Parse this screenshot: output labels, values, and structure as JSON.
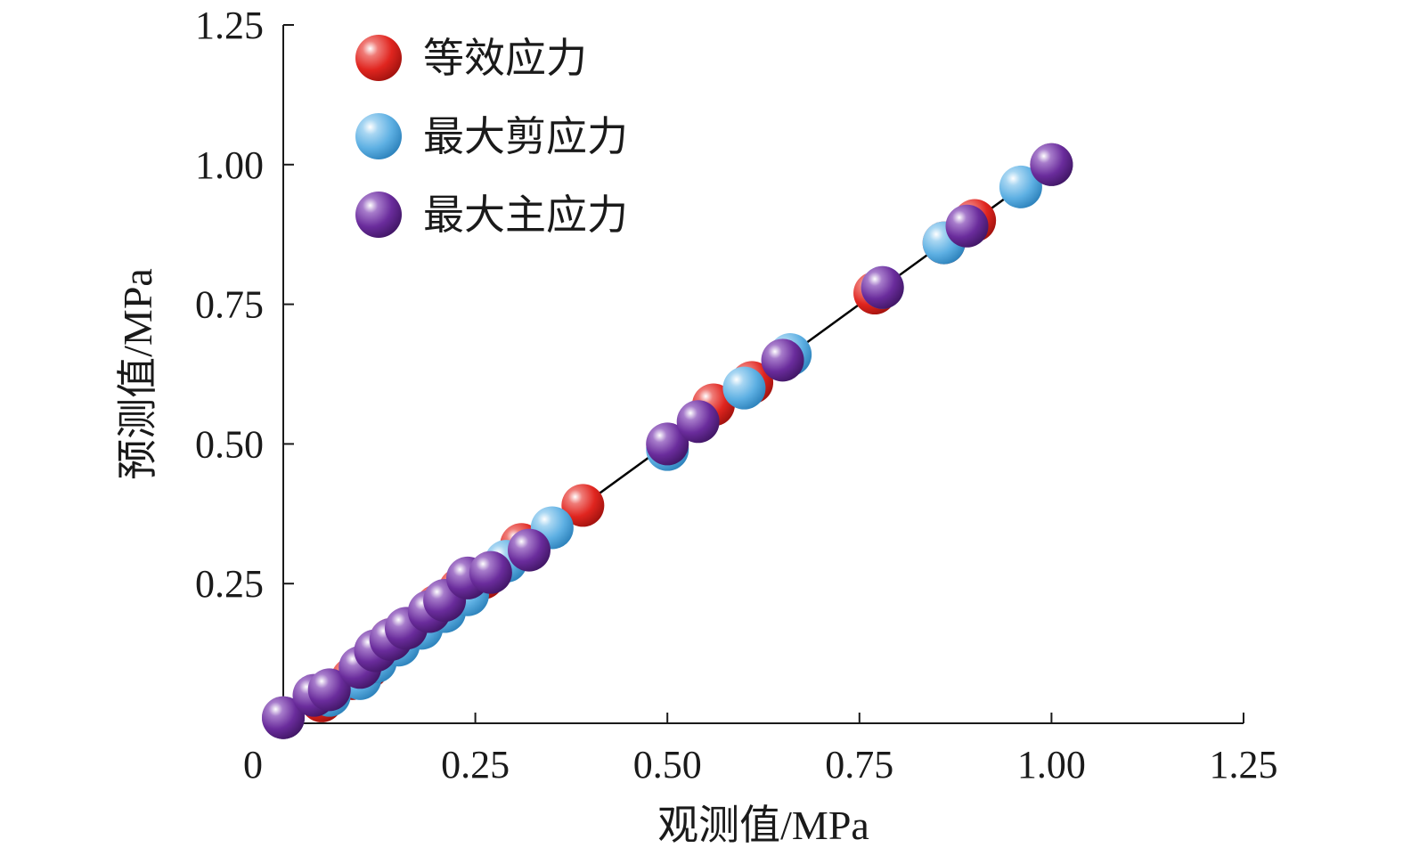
{
  "chart_data": {
    "type": "scatter",
    "title": "",
    "xlabel": "观测值/MPa",
    "ylabel": "预测值/MPa",
    "xlim": [
      0,
      1.25
    ],
    "ylim": [
      0,
      1.25
    ],
    "x_ticks": [
      "0",
      "0.25",
      "0.50",
      "0.75",
      "1.00",
      "1.25"
    ],
    "y_ticks": [
      "0.25",
      "0.50",
      "0.75",
      "1.00",
      "1.25"
    ],
    "x_tick_values": [
      0,
      0.25,
      0.5,
      0.75,
      1.0,
      1.25
    ],
    "y_tick_values": [
      0.25,
      0.5,
      0.75,
      1.0,
      1.25
    ],
    "grid": false,
    "legend_position": "top-left",
    "reference_line": {
      "x": [
        0,
        1.0
      ],
      "y": [
        0,
        1.0
      ],
      "color": "#000000"
    },
    "series": [
      {
        "name": "等效应力",
        "color": "#e0251f",
        "points": [
          [
            0.0,
            0.01
          ],
          [
            0.05,
            0.04
          ],
          [
            0.09,
            0.08
          ],
          [
            0.11,
            0.1
          ],
          [
            0.14,
            0.15
          ],
          [
            0.17,
            0.17
          ],
          [
            0.2,
            0.21
          ],
          [
            0.23,
            0.24
          ],
          [
            0.26,
            0.26
          ],
          [
            0.31,
            0.32
          ],
          [
            0.39,
            0.39
          ],
          [
            0.56,
            0.57
          ],
          [
            0.61,
            0.61
          ],
          [
            0.77,
            0.77
          ],
          [
            0.86,
            0.86
          ],
          [
            0.9,
            0.9
          ],
          [
            1.0,
            1.0
          ]
        ]
      },
      {
        "name": "最大剪应力",
        "color": "#5eb0e3",
        "points": [
          [
            0.0,
            0.01
          ],
          [
            0.06,
            0.05
          ],
          [
            0.1,
            0.08
          ],
          [
            0.12,
            0.11
          ],
          [
            0.15,
            0.14
          ],
          [
            0.18,
            0.17
          ],
          [
            0.21,
            0.2
          ],
          [
            0.24,
            0.23
          ],
          [
            0.29,
            0.29
          ],
          [
            0.35,
            0.35
          ],
          [
            0.5,
            0.49
          ],
          [
            0.6,
            0.6
          ],
          [
            0.66,
            0.66
          ],
          [
            0.78,
            0.78
          ],
          [
            0.86,
            0.86
          ],
          [
            0.96,
            0.96
          ],
          [
            1.0,
            1.0
          ]
        ]
      },
      {
        "name": "最大主应力",
        "color": "#6a2c9c",
        "points": [
          [
            0.0,
            0.01
          ],
          [
            0.04,
            0.05
          ],
          [
            0.06,
            0.06
          ],
          [
            0.1,
            0.1
          ],
          [
            0.12,
            0.13
          ],
          [
            0.14,
            0.15
          ],
          [
            0.16,
            0.17
          ],
          [
            0.19,
            0.2
          ],
          [
            0.21,
            0.22
          ],
          [
            0.24,
            0.26
          ],
          [
            0.27,
            0.27
          ],
          [
            0.32,
            0.31
          ],
          [
            0.5,
            0.5
          ],
          [
            0.54,
            0.54
          ],
          [
            0.65,
            0.65
          ],
          [
            0.78,
            0.78
          ],
          [
            0.89,
            0.89
          ],
          [
            1.0,
            1.0
          ]
        ]
      }
    ]
  }
}
